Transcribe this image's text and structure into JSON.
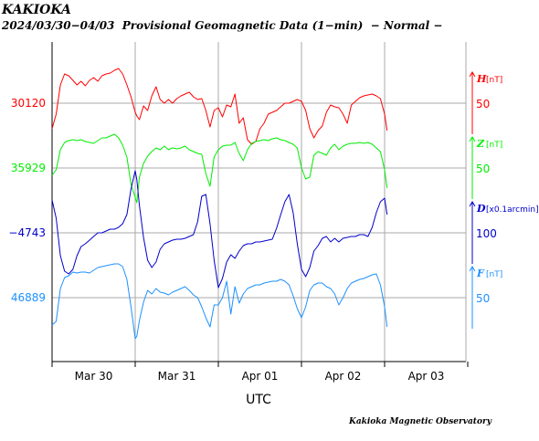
{
  "header": {
    "station": "KAKIOKA",
    "subtitle": "2024/03/30−04/03  Provisional Geomagnetic Data (1−min)  − Normal −"
  },
  "footer": {
    "credit": "Kakioka Magnetic Observatory"
  },
  "chart_data": {
    "type": "line",
    "x_axis": {
      "label": "UTC",
      "tick_labels": [
        "Mar 30",
        "Mar 31",
        "Apr 01",
        "Apr 02",
        "Apr 03"
      ],
      "range_days": [
        0,
        5
      ]
    },
    "grid": true,
    "series": [
      {
        "name": "H",
        "unit": "[nT]",
        "color": "#ff0000",
        "left_label": "30120",
        "right_scale_label": "50",
        "x": [
          0.0,
          0.05,
          0.1,
          0.15,
          0.2,
          0.25,
          0.3,
          0.35,
          0.4,
          0.45,
          0.5,
          0.55,
          0.6,
          0.65,
          0.7,
          0.75,
          0.8,
          0.85,
          0.9,
          0.95,
          1.0,
          1.02,
          1.05,
          1.1,
          1.15,
          1.2,
          1.25,
          1.3,
          1.35,
          1.4,
          1.45,
          1.5,
          1.55,
          1.6,
          1.65,
          1.7,
          1.75,
          1.8,
          1.85,
          1.9,
          1.95,
          2.0,
          2.05,
          2.1,
          2.15,
          2.2,
          2.25,
          2.3,
          2.35,
          2.4,
          2.45,
          2.5,
          2.55,
          2.6,
          2.65,
          2.7,
          2.75,
          2.8,
          2.85,
          2.9,
          2.95,
          3.0,
          3.05,
          3.1,
          3.15,
          3.2,
          3.25,
          3.3,
          3.35,
          3.4,
          3.45,
          3.5,
          3.55,
          3.6,
          3.65,
          3.7,
          3.75,
          3.8,
          3.85,
          3.9,
          3.95,
          4.0,
          4.03
        ],
        "y": [
          -28,
          -12,
          20,
          32,
          30,
          25,
          20,
          24,
          19,
          25,
          28,
          24,
          30,
          32,
          33,
          36,
          38,
          32,
          20,
          7,
          -10,
          -14,
          -18,
          -3,
          -8,
          8,
          18,
          4,
          0,
          4,
          0,
          5,
          8,
          10,
          12,
          7,
          4,
          5,
          -8,
          -26,
          -8,
          -5,
          -15,
          -2,
          -4,
          10,
          -22,
          -16,
          -40,
          -45,
          -42,
          -28,
          -22,
          -12,
          -10,
          -8,
          -4,
          0,
          0,
          2,
          4,
          2,
          -8,
          -28,
          -38,
          -30,
          -25,
          -10,
          -2,
          -4,
          -5,
          -12,
          -22,
          -2,
          2,
          6,
          8,
          9,
          10,
          8,
          5,
          -12,
          -30
        ]
      },
      {
        "name": "Z",
        "unit": "[nT]",
        "color": "#00ee00",
        "left_label": "35929",
        "right_scale_label": "50",
        "x": [
          0.0,
          0.05,
          0.1,
          0.15,
          0.2,
          0.25,
          0.3,
          0.35,
          0.4,
          0.45,
          0.5,
          0.55,
          0.6,
          0.65,
          0.7,
          0.75,
          0.8,
          0.85,
          0.9,
          0.95,
          1.0,
          1.02,
          1.05,
          1.1,
          1.15,
          1.2,
          1.25,
          1.3,
          1.35,
          1.4,
          1.45,
          1.5,
          1.55,
          1.6,
          1.65,
          1.7,
          1.75,
          1.8,
          1.85,
          1.9,
          1.95,
          2.0,
          2.05,
          2.1,
          2.15,
          2.2,
          2.25,
          2.3,
          2.35,
          2.4,
          2.45,
          2.5,
          2.55,
          2.6,
          2.65,
          2.7,
          2.75,
          2.8,
          2.85,
          2.9,
          2.95,
          3.0,
          3.05,
          3.1,
          3.15,
          3.2,
          3.25,
          3.3,
          3.35,
          3.4,
          3.45,
          3.5,
          3.55,
          3.6,
          3.65,
          3.7,
          3.75,
          3.8,
          3.85,
          3.9,
          3.95,
          4.0,
          4.03
        ],
        "y": [
          -8,
          -2,
          20,
          28,
          30,
          31,
          30,
          31,
          29,
          28,
          27,
          30,
          33,
          33,
          35,
          37,
          33,
          25,
          12,
          -18,
          -32,
          -38,
          -10,
          5,
          13,
          18,
          22,
          20,
          24,
          20,
          22,
          21,
          22,
          24,
          20,
          18,
          16,
          15,
          -6,
          -20,
          12,
          20,
          24,
          25,
          25,
          28,
          16,
          8,
          20,
          27,
          29,
          30,
          31,
          30,
          32,
          33,
          31,
          30,
          28,
          26,
          22,
          0,
          -12,
          -10,
          14,
          18,
          16,
          14,
          22,
          26,
          20,
          24,
          26,
          27,
          27,
          28,
          27,
          28,
          26,
          22,
          18,
          -2,
          -22
        ]
      },
      {
        "name": "D",
        "unit": "[x0.1arcmin]",
        "color": "#0000cc",
        "left_label": "−4743",
        "right_scale_label": "100",
        "x": [
          0.0,
          0.05,
          0.1,
          0.15,
          0.2,
          0.25,
          0.3,
          0.35,
          0.4,
          0.45,
          0.5,
          0.55,
          0.6,
          0.65,
          0.7,
          0.75,
          0.8,
          0.85,
          0.9,
          0.95,
          1.0,
          1.02,
          1.05,
          1.1,
          1.15,
          1.2,
          1.25,
          1.3,
          1.35,
          1.4,
          1.45,
          1.5,
          1.55,
          1.6,
          1.65,
          1.7,
          1.75,
          1.8,
          1.85,
          1.9,
          1.95,
          2.0,
          2.05,
          2.1,
          2.15,
          2.2,
          2.25,
          2.3,
          2.35,
          2.4,
          2.45,
          2.5,
          2.55,
          2.6,
          2.65,
          2.7,
          2.75,
          2.8,
          2.85,
          2.9,
          2.95,
          3.0,
          3.05,
          3.1,
          3.15,
          3.2,
          3.25,
          3.3,
          3.35,
          3.4,
          3.45,
          3.5,
          3.55,
          3.6,
          3.65,
          3.7,
          3.75,
          3.8,
          3.85,
          3.9,
          3.95,
          4.0,
          4.03
        ],
        "y": [
          36,
          16,
          -25,
          -42,
          -45,
          -40,
          -25,
          -15,
          -12,
          -8,
          -4,
          0,
          0,
          2,
          4,
          4,
          6,
          10,
          20,
          48,
          68,
          58,
          30,
          -5,
          -30,
          -38,
          -32,
          -18,
          -12,
          -10,
          -8,
          -7,
          -7,
          -6,
          -4,
          -2,
          12,
          40,
          42,
          10,
          -30,
          -60,
          -50,
          -32,
          -24,
          -28,
          -20,
          -14,
          -12,
          -12,
          -10,
          -10,
          -9,
          -8,
          -7,
          5,
          20,
          34,
          42,
          22,
          -12,
          -40,
          -48,
          -38,
          -20,
          -14,
          -6,
          -4,
          -10,
          -6,
          -10,
          -6,
          -5,
          -4,
          -4,
          -2,
          -2,
          -4,
          6,
          22,
          34,
          38,
          20
        ]
      },
      {
        "name": "F",
        "unit": "[nT]",
        "color": "#1e90ff",
        "left_label": "46889",
        "right_scale_label": "50",
        "x": [
          0.0,
          0.05,
          0.1,
          0.15,
          0.2,
          0.25,
          0.3,
          0.35,
          0.4,
          0.45,
          0.5,
          0.55,
          0.6,
          0.65,
          0.7,
          0.75,
          0.8,
          0.85,
          0.9,
          0.95,
          1.0,
          1.02,
          1.05,
          1.1,
          1.15,
          1.2,
          1.25,
          1.3,
          1.35,
          1.4,
          1.45,
          1.5,
          1.55,
          1.6,
          1.65,
          1.7,
          1.75,
          1.8,
          1.85,
          1.9,
          1.95,
          2.0,
          2.05,
          2.1,
          2.15,
          2.2,
          2.25,
          2.3,
          2.35,
          2.4,
          2.45,
          2.5,
          2.55,
          2.6,
          2.65,
          2.7,
          2.75,
          2.8,
          2.85,
          2.9,
          2.95,
          3.0,
          3.05,
          3.1,
          3.15,
          3.2,
          3.25,
          3.3,
          3.35,
          3.4,
          3.45,
          3.5,
          3.55,
          3.6,
          3.65,
          3.7,
          3.75,
          3.8,
          3.85,
          3.9,
          3.95,
          4.0,
          4.03
        ],
        "y": [
          -30,
          -26,
          10,
          22,
          24,
          28,
          27,
          28,
          28,
          27,
          30,
          33,
          34,
          35,
          36,
          37,
          37,
          34,
          20,
          -10,
          -45,
          -42,
          -25,
          -5,
          8,
          4,
          10,
          6,
          5,
          3,
          6,
          8,
          10,
          12,
          8,
          3,
          0,
          -10,
          -22,
          -32,
          -8,
          -8,
          0,
          18,
          -18,
          12,
          -6,
          4,
          10,
          12,
          14,
          14,
          16,
          17,
          18,
          18,
          20,
          18,
          14,
          2,
          -12,
          -22,
          -10,
          8,
          14,
          16,
          16,
          12,
          10,
          4,
          -8,
          0,
          10,
          16,
          18,
          20,
          21,
          23,
          25,
          26,
          14,
          -10,
          -32
        ]
      }
    ]
  }
}
